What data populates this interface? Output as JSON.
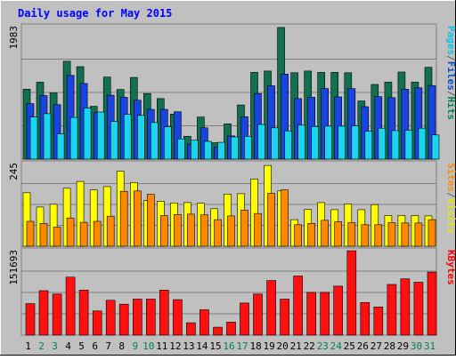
{
  "chart_data": [
    {
      "type": "bar",
      "title": "Daily usage for May 2015",
      "categories": [
        "1",
        "2",
        "3",
        "4",
        "5",
        "6",
        "7",
        "8",
        "9",
        "10",
        "11",
        "12",
        "13",
        "14",
        "15",
        "16",
        "17",
        "18",
        "19",
        "20",
        "21",
        "22",
        "23",
        "24",
        "25",
        "26",
        "27",
        "28",
        "29",
        "30",
        "31"
      ],
      "weekend_day_color": "#00805c",
      "weekday_day_color": "#000000",
      "weekend_days": [
        2,
        3,
        9,
        10,
        16,
        17,
        23,
        24,
        30,
        31
      ],
      "panels": [
        {
          "id": "hits",
          "ymax_label": "1983",
          "ymax": 1983,
          "legend": [
            {
              "label": "Pages",
              "color": "#00c8e8"
            },
            {
              "label": "/",
              "color": "#606060"
            },
            {
              "label": "Files",
              "color": "#0050c8"
            },
            {
              "label": "/",
              "color": "#606060"
            },
            {
              "label": "Hits",
              "color": "#00805c"
            }
          ],
          "series": [
            {
              "name": "Hits",
              "color": "#107050",
              "values": [
                1040,
                1145,
                985,
                1455,
                1375,
                785,
                1220,
                1035,
                1215,
                975,
                900,
                670,
                340,
                625,
                245,
                525,
                805,
                1290,
                1310,
                1958,
                1285,
                1310,
                1290,
                1290,
                1285,
                865,
                1110,
                1145,
                1295,
                1145,
                1365
              ]
            },
            {
              "name": "Files",
              "color": "#1a44e0",
              "values": [
                825,
                945,
                810,
                1245,
                1125,
                690,
                950,
                920,
                875,
                740,
                740,
                705,
                225,
                465,
                180,
                345,
                630,
                975,
                1090,
                1265,
                900,
                920,
                1050,
                925,
                1050,
                780,
                930,
                915,
                1040,
                1060,
                1095
              ]
            },
            {
              "name": "Pages",
              "color": "#1ad4f0",
              "values": [
                625,
                675,
                375,
                620,
                760,
                700,
                560,
                665,
                650,
                545,
                480,
                300,
                280,
                265,
                250,
                330,
                340,
                515,
                465,
                420,
                505,
                485,
                490,
                490,
                495,
                415,
                460,
                425,
                430,
                460,
                360
              ]
            }
          ]
        },
        {
          "id": "visits",
          "ymax_label": "245",
          "ymax": 245,
          "legend": [
            {
              "label": "Sites",
              "color": "#ff8c00"
            },
            {
              "label": "/",
              "color": "#606060"
            },
            {
              "label": "Visits",
              "color": "#e8e800"
            }
          ],
          "series": [
            {
              "name": "Visits",
              "color": "#ffff00",
              "values": [
                157,
                115,
                123,
                170,
                190,
                165,
                175,
                220,
                187,
                134,
                132,
                127,
                128,
                126,
                110,
                153,
                154,
                197,
                237,
                162,
                78,
                108,
                128,
                107,
                124,
                107,
                122,
                90,
                90,
                90,
                89
              ]
            },
            {
              "name": "Sites",
              "color": "#ff8800",
              "values": [
                73,
                67,
                56,
                83,
                70,
                73,
                88,
                161,
                162,
                152,
                90,
                93,
                94,
                92,
                78,
                89,
                106,
                96,
                155,
                165,
                63,
                67,
                76,
                72,
                69,
                63,
                63,
                69,
                68,
                68,
                78
              ]
            }
          ]
        },
        {
          "id": "kbytes",
          "ymax_label": "151693",
          "ymax": 151693,
          "legend": [
            {
              "label": "KBytes",
              "color": "#ff0000"
            }
          ],
          "series": [
            {
              "name": "KBytes",
              "color": "#ff1010",
              "values": [
                56000,
                79000,
                73000,
                103000,
                80000,
                43000,
                62000,
                55000,
                64000,
                64000,
                80000,
                63000,
                22000,
                45000,
                14000,
                23000,
                57000,
                73000,
                97000,
                64000,
                105000,
                76000,
                76000,
                87000,
                150000,
                58000,
                50000,
                90000,
                100000,
                94000,
                112000
              ]
            }
          ]
        }
      ]
    }
  ]
}
